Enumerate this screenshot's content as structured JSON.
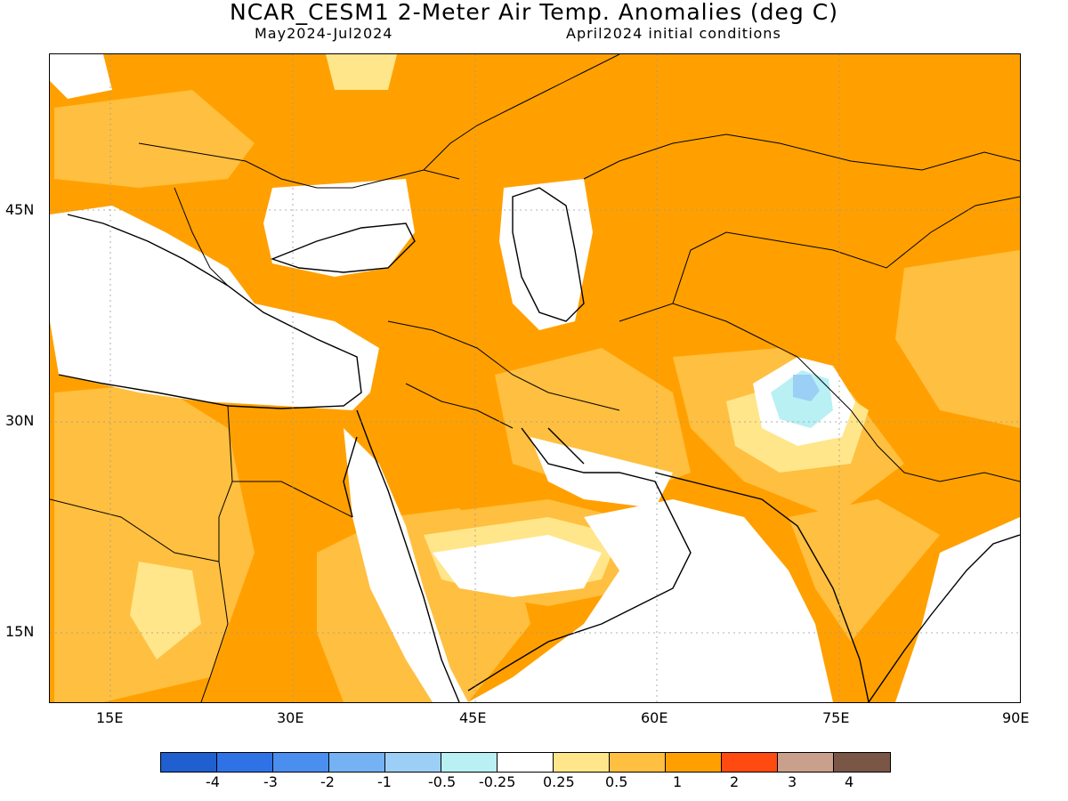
{
  "header": {
    "title": "NCAR_CESM1 2-Meter Air Temp. Anomalies (deg C)",
    "period": "May2024-Jul2024",
    "init": "April2024 initial conditions"
  },
  "map": {
    "lat_labels": [
      "45N",
      "30N",
      "15N"
    ],
    "lon_labels": [
      "15E",
      "30E",
      "45E",
      "60E",
      "75E",
      "90E"
    ],
    "lat_values": [
      45,
      30,
      15
    ],
    "lon_values": [
      15,
      30,
      45,
      60,
      75,
      90
    ],
    "extent": {
      "lon": [
        10,
        90
      ],
      "lat": [
        10,
        55
      ]
    }
  },
  "colorbar": {
    "labels": [
      "-4",
      "-3",
      "-2",
      "-1",
      "-0.5",
      "-0.25",
      "0.25",
      "0.5",
      "1",
      "2",
      "3",
      "4"
    ],
    "colors": [
      "#1f5fcf",
      "#2f72e6",
      "#4a8ef0",
      "#74b2f3",
      "#9ccff6",
      "#b8f0f4",
      "#ffffff",
      "#ffe68a",
      "#ffbf40",
      "#ffa000",
      "#ff4a10",
      "#c8a08c",
      "#7a5646"
    ]
  }
}
